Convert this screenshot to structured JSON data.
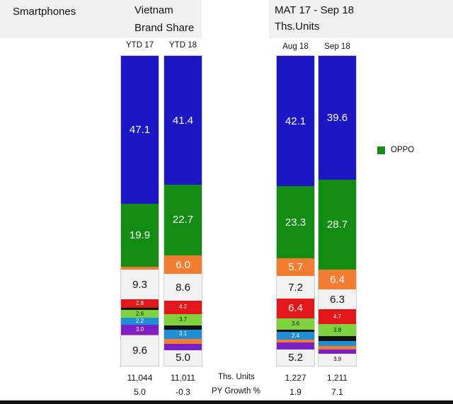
{
  "header": {
    "category": "Smartphones",
    "country": "Vietnam",
    "metric": "Brand Share",
    "period": "MAT 17 - Sep 18",
    "units": "Ths.Units"
  },
  "legend": {
    "label": "OPPO",
    "color": "#128c12"
  },
  "footer": {
    "units_label": "Ths. Units",
    "growth_label": "PY Growth %"
  },
  "colors": {
    "blue": "#1b17c4",
    "green": "#128c12",
    "orange": "#f27c30",
    "white": "#f2f2f2",
    "red": "#e3171a",
    "lightgreen": "#7fd33f",
    "black": "#111111",
    "cyan": "#1e8fd6",
    "purple": "#7b1fc6",
    "pink": "#e65aa8"
  },
  "chart_data": [
    {
      "type": "bar",
      "stacked": true,
      "categories": [
        "YTD 17",
        "YTD 18"
      ],
      "ths_units": [
        "11,044",
        "11,011"
      ],
      "py_growth": [
        "5.0",
        "-0.3"
      ],
      "bars": [
        {
          "category": "YTD 17",
          "segments": [
            {
              "color": "blue",
              "value": 47.1,
              "label": "47.1"
            },
            {
              "color": "green",
              "value": 19.9,
              "label": "19.9"
            },
            {
              "color": "orange",
              "value": 1.0,
              "label": ""
            },
            {
              "color": "white",
              "value": 9.3,
              "label": "9.3"
            },
            {
              "color": "red",
              "value": 2.8,
              "label": "2.8"
            },
            {
              "color": "black",
              "value": 0.6,
              "label": ""
            },
            {
              "color": "lightgreen",
              "value": 2.6,
              "label": "2.6"
            },
            {
              "color": "cyan",
              "value": 2.2,
              "label": "2.2"
            },
            {
              "color": "purple",
              "value": 3.0,
              "label": "3.0"
            },
            {
              "color": "pink",
              "value": 0.4,
              "label": ""
            },
            {
              "color": "white",
              "value": 9.6,
              "label": "9.6"
            }
          ]
        },
        {
          "category": "YTD 18",
          "segments": [
            {
              "color": "blue",
              "value": 41.4,
              "label": "41.4"
            },
            {
              "color": "green",
              "value": 22.7,
              "label": "22.7"
            },
            {
              "color": "orange",
              "value": 6.0,
              "label": "6.0"
            },
            {
              "color": "white",
              "value": 8.6,
              "label": "8.6"
            },
            {
              "color": "red",
              "value": 4.2,
              "label": "4.2"
            },
            {
              "color": "lightgreen",
              "value": 3.7,
              "label": "3.7"
            },
            {
              "color": "black",
              "value": 1.3,
              "label": ""
            },
            {
              "color": "cyan",
              "value": 3.1,
              "label": "3.1"
            },
            {
              "color": "orange",
              "value": 1.6,
              "label": ""
            },
            {
              "color": "purple",
              "value": 2.0,
              "label": ""
            },
            {
              "color": "white",
              "value": 5.0,
              "label": "5.0"
            }
          ]
        }
      ]
    },
    {
      "type": "bar",
      "stacked": true,
      "categories": [
        "Aug 18",
        "Sep 18"
      ],
      "ths_units": [
        "1,227",
        "1,211"
      ],
      "py_growth": [
        "1.9",
        "7.1"
      ],
      "bars": [
        {
          "category": "Aug 18",
          "segments": [
            {
              "color": "blue",
              "value": 42.1,
              "label": "42.1"
            },
            {
              "color": "green",
              "value": 23.3,
              "label": "23.3"
            },
            {
              "color": "orange",
              "value": 5.7,
              "label": "5.7"
            },
            {
              "color": "white",
              "value": 7.2,
              "label": "7.2"
            },
            {
              "color": "red",
              "value": 6.4,
              "label": "6.4"
            },
            {
              "color": "lightgreen",
              "value": 3.6,
              "label": "3.6"
            },
            {
              "color": "black",
              "value": 0.8,
              "label": ""
            },
            {
              "color": "cyan",
              "value": 2.4,
              "label": "2.4"
            },
            {
              "color": "orange",
              "value": 1.0,
              "label": ""
            },
            {
              "color": "purple",
              "value": 2.3,
              "label": ""
            },
            {
              "color": "white",
              "value": 5.2,
              "label": "5.2"
            }
          ]
        },
        {
          "category": "Sep 18",
          "segments": [
            {
              "color": "blue",
              "value": 39.6,
              "label": "39.6"
            },
            {
              "color": "green",
              "value": 28.7,
              "label": "28.7"
            },
            {
              "color": "orange",
              "value": 6.4,
              "label": "6.4"
            },
            {
              "color": "white",
              "value": 6.3,
              "label": "6.3"
            },
            {
              "color": "red",
              "value": 4.7,
              "label": "4.7"
            },
            {
              "color": "lightgreen",
              "value": 3.8,
              "label": "3.8"
            },
            {
              "color": "black",
              "value": 1.6,
              "label": ""
            },
            {
              "color": "cyan",
              "value": 1.6,
              "label": ""
            },
            {
              "color": "orange",
              "value": 1.2,
              "label": ""
            },
            {
              "color": "purple",
              "value": 1.2,
              "label": ""
            },
            {
              "color": "white",
              "value": 3.9,
              "label": "3.9"
            }
          ]
        }
      ]
    }
  ]
}
